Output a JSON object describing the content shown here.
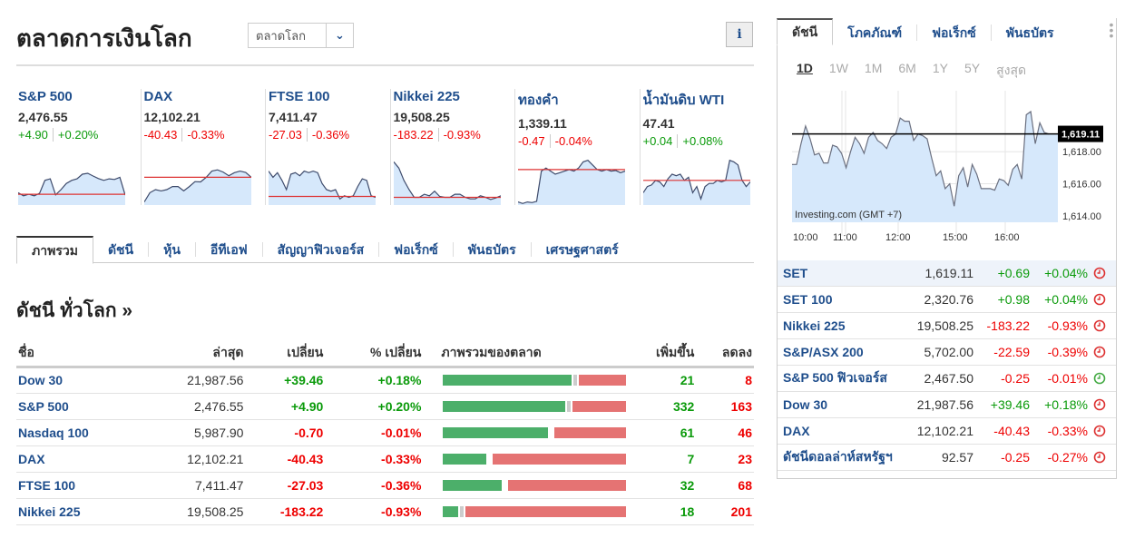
{
  "header": {
    "title": "ตลาดการเงินโลก",
    "selector": "ตลาดโลก",
    "info_icon": "info-icon"
  },
  "tiles": [
    {
      "name": "S&P 500",
      "value": "2,476.55",
      "change": "+4.90",
      "pct": "+0.20%",
      "dir": "up",
      "spark": [
        4,
        3,
        3.5,
        3,
        3.8,
        8,
        8.5,
        3.3,
        5,
        7,
        8,
        8.5,
        10,
        10.3,
        9.4,
        8.6,
        8,
        8.5,
        8.3,
        9,
        3.2
      ],
      "base": 3.5
    },
    {
      "name": "DAX",
      "value": "12,102.21",
      "change": "-40.43",
      "pct": "-0.33%",
      "dir": "dn",
      "spark": [
        1,
        4,
        5,
        4.6,
        5,
        6,
        6,
        4.6,
        6,
        7.6,
        7.5,
        9,
        11,
        11.4,
        10.7,
        9.5,
        10.5,
        11,
        10.6,
        9
      ],
      "base": 9
    },
    {
      "name": "FTSE 100",
      "value": "7,411.47",
      "change": "-27.03",
      "pct": "-0.36%",
      "dir": "dn",
      "spark": [
        11,
        9,
        10.5,
        8,
        5,
        10,
        10.5,
        9.5,
        11,
        10.5,
        11,
        10.5,
        7,
        5,
        4.5,
        5,
        2,
        3,
        2.5,
        3,
        6,
        8.5,
        8,
        3,
        2.5
      ],
      "base": 2.8
    },
    {
      "name": "Nikkei 225",
      "value": "19,508.25",
      "change": "-183.22",
      "pct": "-0.93%",
      "dir": "dn",
      "spark": [
        14,
        12,
        8,
        5,
        2.5,
        2.5,
        3.5,
        3,
        4.5,
        2.8,
        2.5,
        2.5,
        3.5,
        3.5,
        2.5,
        2,
        2,
        3,
        2.5,
        1.8,
        2.3,
        3
      ],
      "base": 2.5
    },
    {
      "name": "ทองคำ",
      "value": "1,339.11",
      "change": "-0.47",
      "pct": "-0.04%",
      "dir": "dn",
      "spark": [
        1,
        0.5,
        1,
        0.8,
        1.2,
        11,
        12,
        11,
        10,
        10.5,
        11,
        11.5,
        11,
        12,
        14,
        14.5,
        13,
        11.5,
        11,
        11.5,
        11,
        11.2,
        10.5,
        11
      ],
      "base": 11.5
    },
    {
      "name": "น้ำมันดิบ WTI",
      "value": "47.41",
      "change": "+0.04",
      "pct": "+0.08%",
      "dir": "up",
      "spark": [
        4,
        6,
        6.5,
        8,
        7.5,
        6,
        8.5,
        10,
        9.5,
        10,
        8,
        9,
        4,
        6,
        2,
        6,
        7,
        7,
        8,
        7.5,
        8,
        14.5,
        14,
        13,
        8,
        6,
        7.5
      ],
      "base": 8
    }
  ],
  "tabs": [
    "ภาพรวม",
    "ดัชนี",
    "หุ้น",
    "อีทีเอฟ",
    "สัญญาฟิวเจอร์ส",
    "ฟอเร็กซ์",
    "พันธบัตร",
    "เศรษฐศาสตร์"
  ],
  "section_title": "ดัชนี ทั่วโลก »",
  "table": {
    "headers": [
      "ชื่อ",
      "ล่าสุด",
      "เปลี่ยน",
      "% เปลี่ยน",
      "ภาพรวมของตลาด",
      "เพิ่มขึ้น",
      "ลดลง"
    ],
    "rows": [
      {
        "name": "Dow 30",
        "last": "21,987.56",
        "chg": "+39.46",
        "pct": "+0.18%",
        "dir": "up",
        "adv": "21",
        "dec": "8",
        "unch": 1
      },
      {
        "name": "S&P 500",
        "last": "2,476.55",
        "chg": "+4.90",
        "pct": "+0.20%",
        "dir": "up",
        "adv": "332",
        "dec": "163",
        "unch": 5
      },
      {
        "name": "Nasdaq 100",
        "last": "5,987.90",
        "chg": "-0.70",
        "pct": "-0.01%",
        "dir": "dn",
        "adv": "61",
        "dec": "46",
        "unch": 0
      },
      {
        "name": "DAX",
        "last": "12,102.21",
        "chg": "-40.43",
        "pct": "-0.33%",
        "dir": "dn",
        "adv": "7",
        "dec": "23",
        "unch": 0
      },
      {
        "name": "FTSE 100",
        "last": "7,411.47",
        "chg": "-27.03",
        "pct": "-0.36%",
        "dir": "dn",
        "adv": "32",
        "dec": "68",
        "unch": 0
      },
      {
        "name": "Nikkei 225",
        "last": "19,508.25",
        "chg": "-183.22",
        "pct": "-0.93%",
        "dir": "dn",
        "adv": "18",
        "dec": "201",
        "unch": 6
      }
    ]
  },
  "side": {
    "tabs": [
      "ดัชนี",
      "โภคภัณฑ์",
      "ฟอเร็กซ์",
      "พันธบัตร"
    ],
    "ranges": [
      "1D",
      "1W",
      "1M",
      "6M",
      "1Y",
      "5Y",
      "สูงสุด"
    ],
    "chart_data": {
      "type": "area",
      "current_label": "1,619.11",
      "current": 1619.11,
      "ylim": [
        1613.6,
        1621.8
      ],
      "yticks": [
        "1,618.00",
        "1,616.00",
        "1,614.00"
      ],
      "ytick_values": [
        1618,
        1616,
        1614
      ],
      "xticks": [
        "10:00",
        "11:00",
        "12:00",
        "15:00",
        "16:00"
      ],
      "watermark": "Investing.com (GMT +7)",
      "values": [
        1617.2,
        1617.2,
        1618.5,
        1619.6,
        1618.8,
        1617.8,
        1617.9,
        1617.3,
        1617.3,
        1618.4,
        1618.3,
        1617.9,
        1617.0,
        1618.0,
        1618.9,
        1618.5,
        1617.9,
        1618.9,
        1619.2,
        1618.7,
        1618.5,
        1618.2,
        1618.9,
        1619.1,
        1620.1,
        1619.9,
        1619.9,
        1618.7,
        1619.1,
        1619.0,
        1618.8,
        1617.6,
        1616.5,
        1616.8,
        1615.7,
        1616.0,
        1614.6,
        1616.5,
        1617.0,
        1615.8,
        1617.2,
        1616.6,
        1615.7,
        1615.7,
        1615.7,
        1615.6,
        1616.3,
        1616.2,
        1615.9,
        1616.9,
        1617.2,
        1616.3,
        1620.3,
        1620.5,
        1618.5,
        1619.8,
        1619.2,
        1619.1
      ]
    },
    "list": [
      {
        "name": "SET",
        "value": "1,619.11",
        "chg": "+0.69",
        "pct": "+0.04%",
        "dir": "up",
        "hl": true
      },
      {
        "name": "SET 100",
        "value": "2,320.76",
        "chg": "+0.98",
        "pct": "+0.04%",
        "dir": "up"
      },
      {
        "name": "Nikkei 225",
        "value": "19,508.25",
        "chg": "-183.22",
        "pct": "-0.93%",
        "dir": "dn"
      },
      {
        "name": "S&P/ASX 200",
        "value": "5,702.00",
        "chg": "-22.59",
        "pct": "-0.39%",
        "dir": "dn"
      },
      {
        "name": "S&P 500 ฟิวเจอร์ส",
        "value": "2,467.50",
        "chg": "-0.25",
        "pct": "-0.01%",
        "dir": "dn",
        "open": true
      },
      {
        "name": "Dow 30",
        "value": "21,987.56",
        "chg": "+39.46",
        "pct": "+0.18%",
        "dir": "up"
      },
      {
        "name": "DAX",
        "value": "12,102.21",
        "chg": "-40.43",
        "pct": "-0.33%",
        "dir": "dn"
      },
      {
        "name": "ดัชนีดอลล่าห์สหรัฐฯ",
        "value": "92.57",
        "chg": "-0.25",
        "pct": "-0.27%",
        "dir": "dn"
      }
    ]
  },
  "colors": {
    "up": "#0a9a0a",
    "down": "#e00",
    "bar_green": "#4caf6a",
    "bar_red": "#e57373",
    "bar_gray": "#ccc",
    "area": "#d6e8fb"
  }
}
